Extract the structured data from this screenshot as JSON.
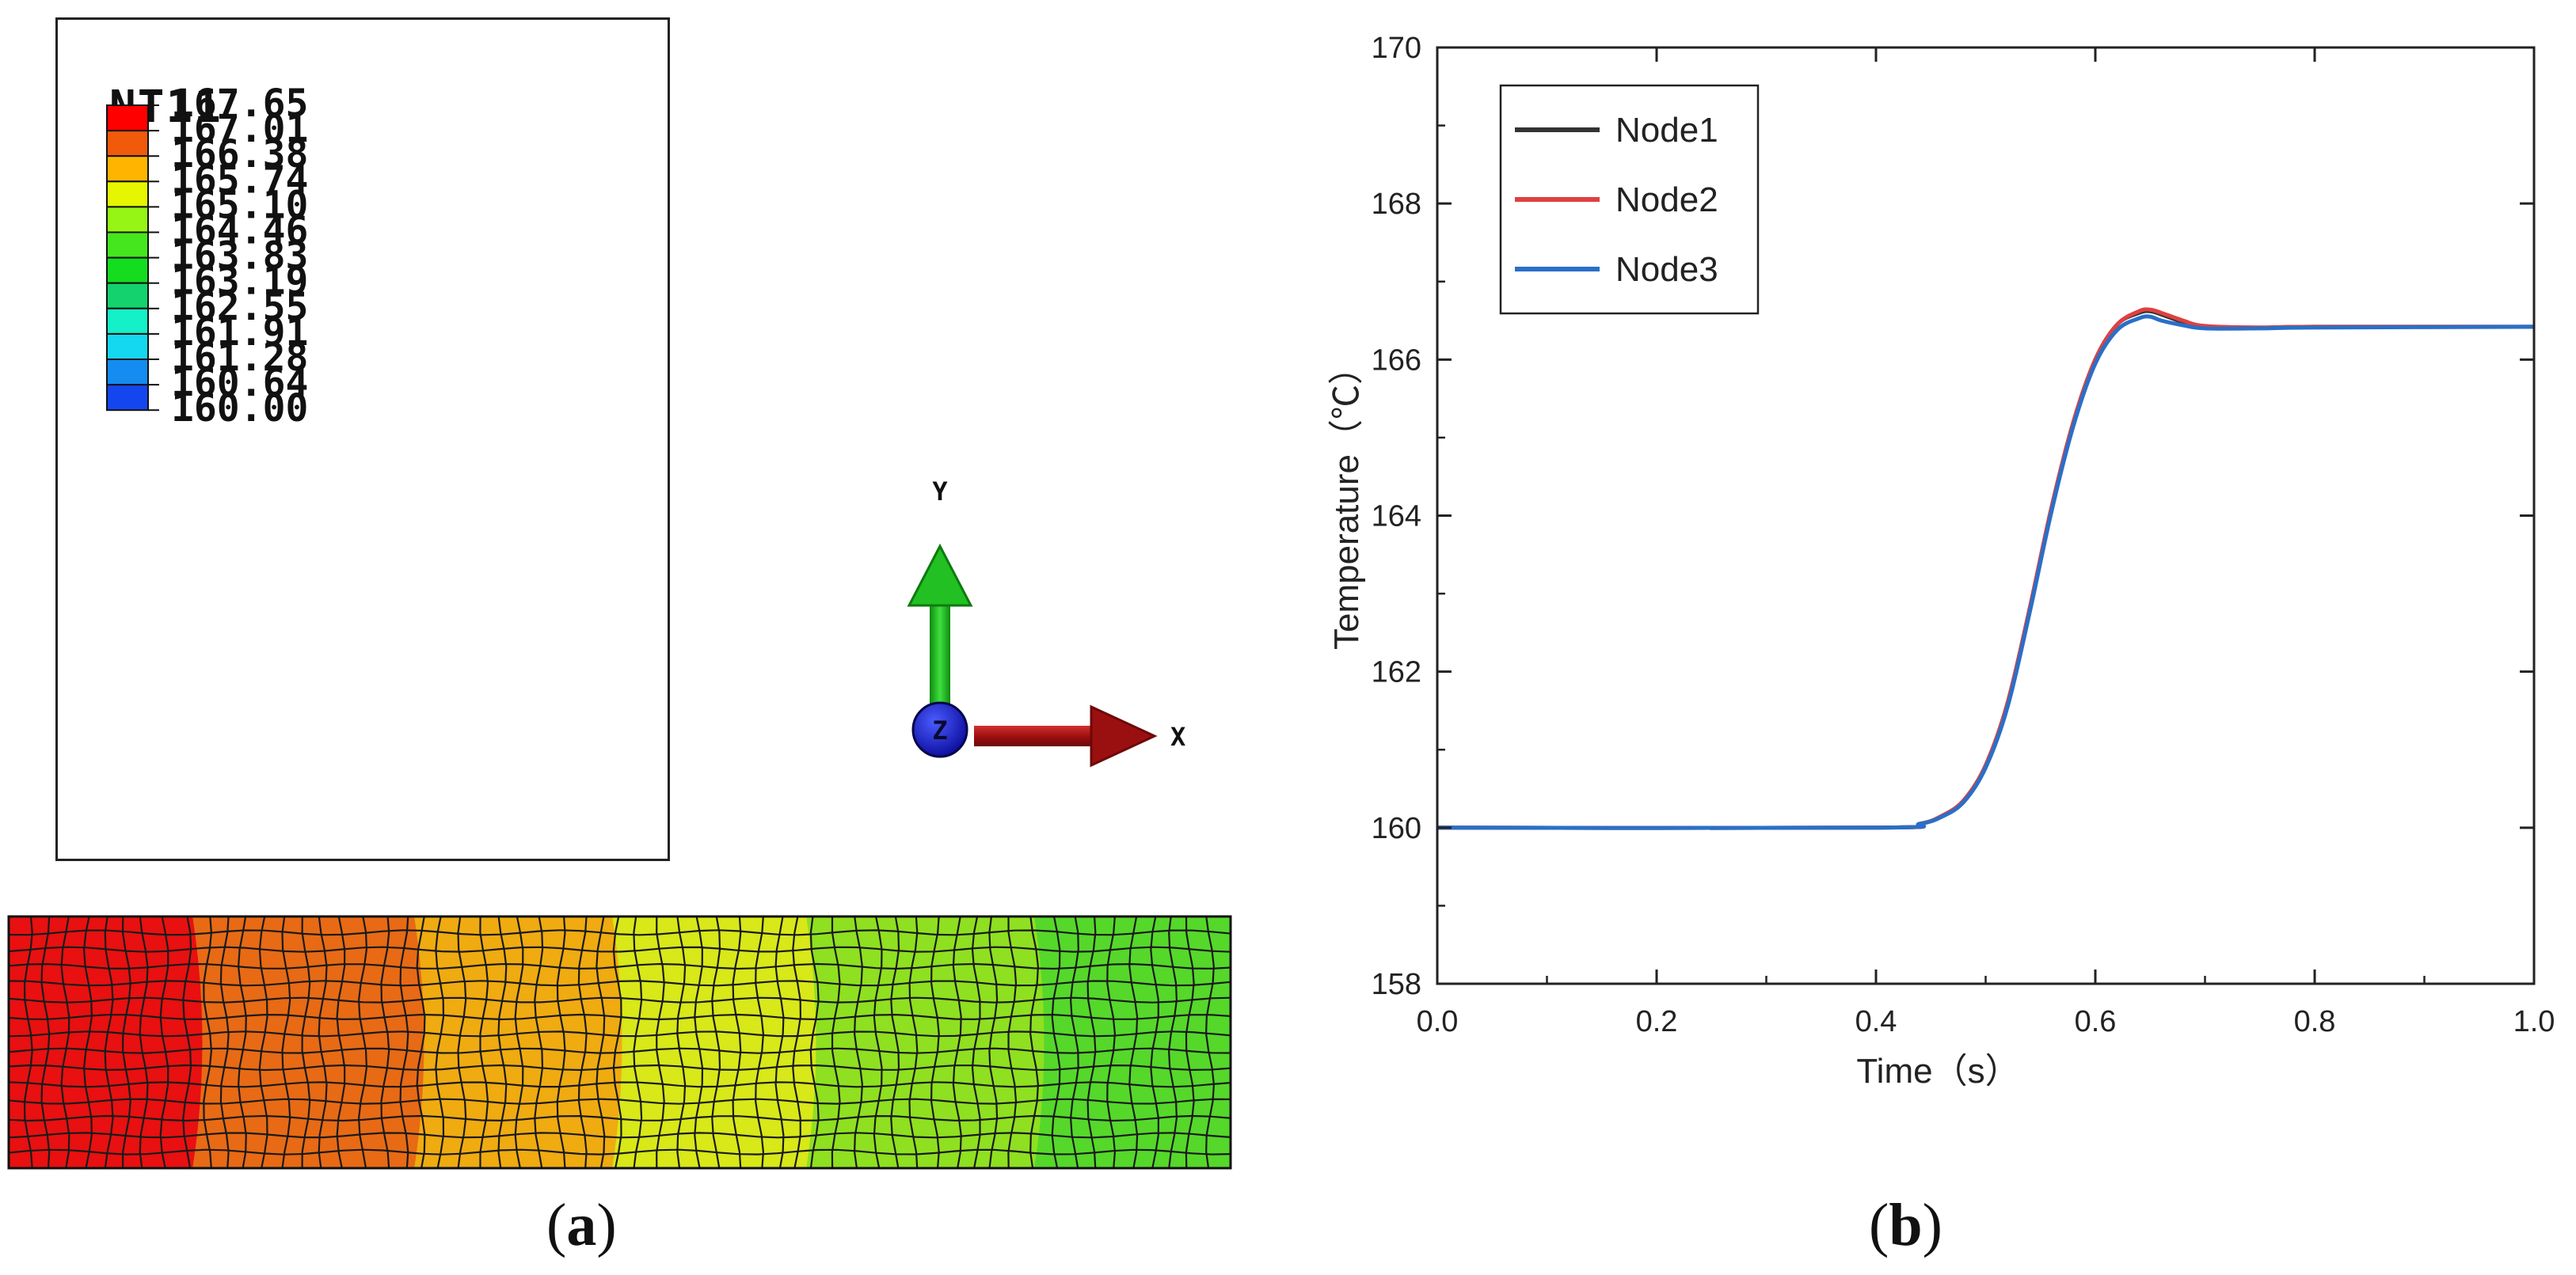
{
  "panel_a": {
    "legend": {
      "title": "NT11",
      "levels": [
        "167.65",
        "167.01",
        "166.38",
        "165.74",
        "165.10",
        "164.46",
        "163.83",
        "163.19",
        "162.55",
        "161.91",
        "161.28",
        "160.64",
        "160.00"
      ],
      "colors": [
        "#ff0000",
        "#f05a0a",
        "#ffb400",
        "#e6f500",
        "#96f514",
        "#46e61e",
        "#14dc1e",
        "#14d26e",
        "#14f0c8",
        "#14d7f0",
        "#148cf0",
        "#1446f0",
        "#0a0aff"
      ]
    },
    "axes_triad": {
      "y_label": "Y",
      "x_label": "X",
      "z_label": "Z"
    },
    "mesh_colors": [
      "#e81010",
      "#e86a14",
      "#efab10",
      "#d8e818",
      "#8fe020",
      "#55d82a"
    ],
    "caption_letter": "a"
  },
  "chart_data": {
    "type": "line",
    "xlabel": "Time（s）",
    "ylabel": "Temperature（℃）",
    "xlim": [
      0.0,
      1.0
    ],
    "ylim": [
      158,
      170
    ],
    "xticks": [
      "0.0",
      "0.2",
      "0.4",
      "0.6",
      "0.8",
      "1.0"
    ],
    "yticks": [
      "158",
      "160",
      "162",
      "164",
      "166",
      "168",
      "170"
    ],
    "legend_position": "top-left",
    "series": [
      {
        "name": "Node1",
        "color": "#333333",
        "x": [
          0.0,
          0.4,
          0.44,
          0.46,
          0.48,
          0.5,
          0.52,
          0.54,
          0.56,
          0.58,
          0.6,
          0.62,
          0.64,
          0.65,
          0.66,
          0.68,
          0.7,
          0.75,
          0.8,
          1.0
        ],
        "y": [
          160.0,
          160.0,
          160.05,
          160.15,
          160.35,
          160.8,
          161.6,
          162.8,
          164.1,
          165.2,
          166.0,
          166.45,
          166.6,
          166.62,
          166.58,
          166.48,
          166.42,
          166.41,
          166.42,
          166.42
        ]
      },
      {
        "name": "Node2",
        "color": "#e04040",
        "x": [
          0.0,
          0.4,
          0.44,
          0.46,
          0.48,
          0.5,
          0.52,
          0.54,
          0.56,
          0.58,
          0.6,
          0.62,
          0.64,
          0.65,
          0.66,
          0.68,
          0.7,
          0.75,
          0.8,
          1.0
        ],
        "y": [
          160.0,
          160.0,
          160.05,
          160.15,
          160.35,
          160.8,
          161.6,
          162.8,
          164.1,
          165.2,
          166.0,
          166.45,
          166.62,
          166.64,
          166.6,
          166.5,
          166.43,
          166.41,
          166.42,
          166.42
        ]
      },
      {
        "name": "Node3",
        "color": "#2a6fc8",
        "x": [
          0.0,
          0.4,
          0.44,
          0.46,
          0.48,
          0.5,
          0.52,
          0.54,
          0.56,
          0.58,
          0.6,
          0.62,
          0.64,
          0.65,
          0.66,
          0.68,
          0.7,
          0.75,
          0.8,
          1.0
        ],
        "y": [
          160.0,
          160.0,
          160.05,
          160.14,
          160.33,
          160.77,
          161.55,
          162.75,
          164.05,
          165.15,
          165.95,
          166.38,
          166.53,
          166.55,
          166.5,
          166.44,
          166.4,
          166.4,
          166.41,
          166.42
        ]
      }
    ],
    "caption_letter": "b"
  }
}
